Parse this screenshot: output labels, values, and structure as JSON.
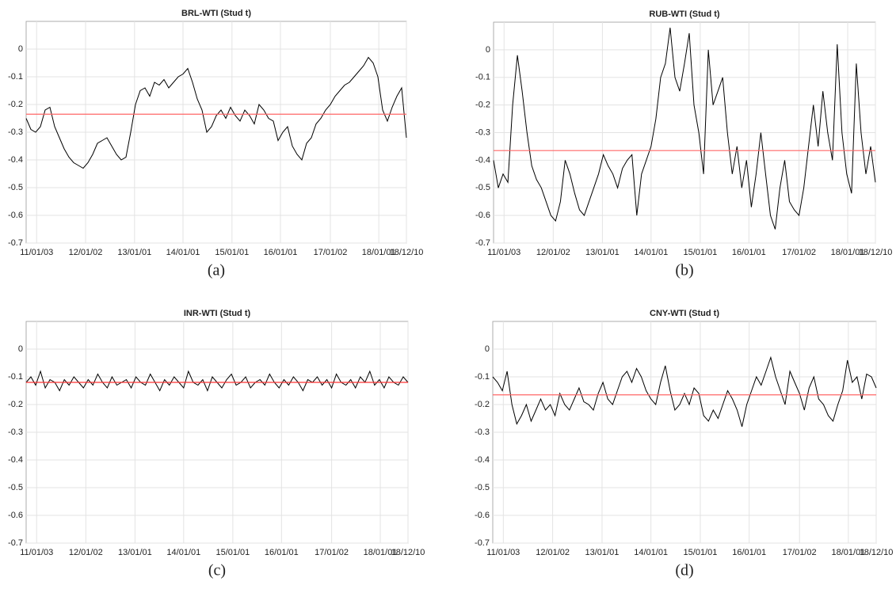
{
  "chart_data": [
    {
      "type": "line",
      "title": "BRL-WTI (Stud t)",
      "caption": "(a)",
      "color": "#000000",
      "x": [
        0,
        1,
        2,
        3,
        4,
        5,
        6,
        7,
        8,
        9,
        10,
        11,
        12,
        13,
        14,
        15,
        16,
        17,
        18,
        19,
        20,
        21,
        22,
        23,
        24,
        25,
        26,
        27,
        28,
        29,
        30,
        31,
        32,
        33,
        34,
        35,
        36,
        37,
        38,
        39,
        40,
        41,
        42,
        43,
        44,
        45,
        46,
        47,
        48,
        49,
        50,
        51,
        52,
        53,
        54,
        55,
        56,
        57,
        58,
        59,
        60,
        61,
        62,
        63,
        64,
        65,
        66,
        67,
        68,
        69,
        70,
        71,
        72,
        73,
        74,
        75,
        76,
        77,
        78,
        79,
        80
      ],
      "values": [
        -0.25,
        -0.29,
        -0.3,
        -0.28,
        -0.22,
        -0.21,
        -0.28,
        -0.32,
        -0.36,
        -0.39,
        -0.41,
        -0.42,
        -0.43,
        -0.41,
        -0.38,
        -0.34,
        -0.33,
        -0.32,
        -0.35,
        -0.38,
        -0.4,
        -0.39,
        -0.3,
        -0.2,
        -0.15,
        -0.14,
        -0.17,
        -0.12,
        -0.13,
        -0.11,
        -0.14,
        -0.12,
        -0.1,
        -0.09,
        -0.07,
        -0.12,
        -0.18,
        -0.22,
        -0.3,
        -0.28,
        -0.24,
        -0.22,
        -0.25,
        -0.21,
        -0.24,
        -0.26,
        -0.22,
        -0.24,
        -0.27,
        -0.2,
        -0.22,
        -0.25,
        -0.26,
        -0.33,
        -0.3,
        -0.28,
        -0.35,
        -0.38,
        -0.4,
        -0.34,
        -0.32,
        -0.27,
        -0.25,
        -0.22,
        -0.2,
        -0.17,
        -0.15,
        -0.13,
        -0.12,
        -0.1,
        -0.08,
        -0.06,
        -0.03,
        -0.05,
        -0.1,
        -0.22,
        -0.26,
        -0.21,
        -0.17,
        -0.14,
        -0.32
      ],
      "mean_line": {
        "value": -0.235,
        "color": "#ff6666"
      },
      "xlim": [
        0,
        80
      ],
      "xticks": [
        {
          "value": 2.2,
          "label": "11/01/03"
        },
        {
          "value": 12.5,
          "label": "12/01/02"
        },
        {
          "value": 22.8,
          "label": "13/01/01"
        },
        {
          "value": 33,
          "label": "14/01/01"
        },
        {
          "value": 43.3,
          "label": "15/01/01"
        },
        {
          "value": 53.5,
          "label": "16/01/01"
        },
        {
          "value": 64,
          "label": "17/01/02"
        },
        {
          "value": 74.2,
          "label": "18/01/01"
        },
        {
          "value": 80,
          "label": "18/12/10"
        }
      ],
      "ylim": [
        -0.7,
        0.1
      ],
      "yticks": [
        -0.7,
        -0.6,
        -0.5,
        -0.4,
        -0.3,
        -0.2,
        -0.1,
        0
      ],
      "grid": true
    },
    {
      "type": "line",
      "title": "RUB-WTI (Stud t)",
      "caption": "(b)",
      "color": "#000000",
      "x": [
        0,
        1,
        2,
        3,
        4,
        5,
        6,
        7,
        8,
        9,
        10,
        11,
        12,
        13,
        14,
        15,
        16,
        17,
        18,
        19,
        20,
        21,
        22,
        23,
        24,
        25,
        26,
        27,
        28,
        29,
        30,
        31,
        32,
        33,
        34,
        35,
        36,
        37,
        38,
        39,
        40,
        41,
        42,
        43,
        44,
        45,
        46,
        47,
        48,
        49,
        50,
        51,
        52,
        53,
        54,
        55,
        56,
        57,
        58,
        59,
        60,
        61,
        62,
        63,
        64,
        65,
        66,
        67,
        68,
        69,
        70,
        71,
        72,
        73,
        74,
        75,
        76,
        77,
        78,
        79,
        80
      ],
      "values": [
        -0.4,
        -0.5,
        -0.45,
        -0.48,
        -0.2,
        -0.02,
        -0.15,
        -0.3,
        -0.42,
        -0.47,
        -0.5,
        -0.55,
        -0.6,
        -0.62,
        -0.55,
        -0.4,
        -0.45,
        -0.52,
        -0.58,
        -0.6,
        -0.55,
        -0.5,
        -0.45,
        -0.38,
        -0.42,
        -0.45,
        -0.5,
        -0.43,
        -0.4,
        -0.38,
        -0.6,
        -0.45,
        -0.4,
        -0.35,
        -0.25,
        -0.1,
        -0.05,
        0.08,
        -0.1,
        -0.15,
        -0.05,
        0.06,
        -0.2,
        -0.3,
        -0.45,
        0.0,
        -0.2,
        -0.15,
        -0.1,
        -0.3,
        -0.45,
        -0.35,
        -0.5,
        -0.4,
        -0.57,
        -0.45,
        -0.3,
        -0.45,
        -0.6,
        -0.65,
        -0.5,
        -0.4,
        -0.55,
        -0.58,
        -0.6,
        -0.5,
        -0.35,
        -0.2,
        -0.35,
        -0.15,
        -0.3,
        -0.4,
        0.02,
        -0.3,
        -0.45,
        -0.52,
        -0.05,
        -0.3,
        -0.45,
        -0.35,
        -0.48
      ],
      "mean_line": {
        "value": -0.365,
        "color": "#ff6666"
      },
      "xlim": [
        0,
        80
      ],
      "xticks": [
        {
          "value": 2.2,
          "label": "11/01/03"
        },
        {
          "value": 12.5,
          "label": "12/01/02"
        },
        {
          "value": 22.8,
          "label": "13/01/01"
        },
        {
          "value": 33,
          "label": "14/01/01"
        },
        {
          "value": 43.3,
          "label": "15/01/01"
        },
        {
          "value": 53.5,
          "label": "16/01/01"
        },
        {
          "value": 64,
          "label": "17/01/02"
        },
        {
          "value": 74.2,
          "label": "18/01/01"
        },
        {
          "value": 80,
          "label": "18/12/10"
        }
      ],
      "ylim": [
        -0.7,
        0.1
      ],
      "yticks": [
        -0.7,
        -0.6,
        -0.5,
        -0.4,
        -0.3,
        -0.2,
        -0.1,
        0
      ],
      "grid": true
    },
    {
      "type": "line",
      "title": "INR-WTI (Stud t)",
      "caption": "(c)",
      "color": "#000000",
      "x": [
        0,
        1,
        2,
        3,
        4,
        5,
        6,
        7,
        8,
        9,
        10,
        11,
        12,
        13,
        14,
        15,
        16,
        17,
        18,
        19,
        20,
        21,
        22,
        23,
        24,
        25,
        26,
        27,
        28,
        29,
        30,
        31,
        32,
        33,
        34,
        35,
        36,
        37,
        38,
        39,
        40,
        41,
        42,
        43,
        44,
        45,
        46,
        47,
        48,
        49,
        50,
        51,
        52,
        53,
        54,
        55,
        56,
        57,
        58,
        59,
        60,
        61,
        62,
        63,
        64,
        65,
        66,
        67,
        68,
        69,
        70,
        71,
        72,
        73,
        74,
        75,
        76,
        77,
        78,
        79,
        80
      ],
      "values": [
        -0.12,
        -0.1,
        -0.13,
        -0.08,
        -0.14,
        -0.11,
        -0.12,
        -0.15,
        -0.11,
        -0.13,
        -0.1,
        -0.12,
        -0.14,
        -0.11,
        -0.13,
        -0.09,
        -0.12,
        -0.14,
        -0.1,
        -0.13,
        -0.12,
        -0.11,
        -0.14,
        -0.1,
        -0.12,
        -0.13,
        -0.09,
        -0.12,
        -0.15,
        -0.11,
        -0.13,
        -0.1,
        -0.12,
        -0.14,
        -0.08,
        -0.12,
        -0.13,
        -0.11,
        -0.15,
        -0.1,
        -0.12,
        -0.14,
        -0.11,
        -0.09,
        -0.13,
        -0.12,
        -0.1,
        -0.14,
        -0.12,
        -0.11,
        -0.13,
        -0.09,
        -0.12,
        -0.14,
        -0.11,
        -0.13,
        -0.1,
        -0.12,
        -0.15,
        -0.11,
        -0.12,
        -0.1,
        -0.13,
        -0.11,
        -0.14,
        -0.09,
        -0.12,
        -0.13,
        -0.11,
        -0.14,
        -0.1,
        -0.12,
        -0.08,
        -0.13,
        -0.11,
        -0.14,
        -0.1,
        -0.12,
        -0.13,
        -0.1,
        -0.12
      ],
      "mean_line": {
        "value": -0.12,
        "color": "#ff3333"
      },
      "xlim": [
        0,
        80
      ],
      "xticks": [
        {
          "value": 2.2,
          "label": "11/01/03"
        },
        {
          "value": 12.5,
          "label": "12/01/02"
        },
        {
          "value": 22.8,
          "label": "13/01/01"
        },
        {
          "value": 33,
          "label": "14/01/01"
        },
        {
          "value": 43.3,
          "label": "15/01/01"
        },
        {
          "value": 53.5,
          "label": "16/01/01"
        },
        {
          "value": 64,
          "label": "17/01/02"
        },
        {
          "value": 74.2,
          "label": "18/01/01"
        },
        {
          "value": 80,
          "label": "18/12/10"
        }
      ],
      "ylim": [
        -0.7,
        0.1
      ],
      "yticks": [
        -0.7,
        -0.6,
        -0.5,
        -0.4,
        -0.3,
        -0.2,
        -0.1,
        0
      ],
      "grid": true
    },
    {
      "type": "line",
      "title": "CNY-WTI (Stud t)",
      "caption": "(d)",
      "color": "#000000",
      "x": [
        0,
        1,
        2,
        3,
        4,
        5,
        6,
        7,
        8,
        9,
        10,
        11,
        12,
        13,
        14,
        15,
        16,
        17,
        18,
        19,
        20,
        21,
        22,
        23,
        24,
        25,
        26,
        27,
        28,
        29,
        30,
        31,
        32,
        33,
        34,
        35,
        36,
        37,
        38,
        39,
        40,
        41,
        42,
        43,
        44,
        45,
        46,
        47,
        48,
        49,
        50,
        51,
        52,
        53,
        54,
        55,
        56,
        57,
        58,
        59,
        60,
        61,
        62,
        63,
        64,
        65,
        66,
        67,
        68,
        69,
        70,
        71,
        72,
        73,
        74,
        75,
        76,
        77,
        78,
        79,
        80
      ],
      "values": [
        -0.1,
        -0.12,
        -0.15,
        -0.08,
        -0.2,
        -0.27,
        -0.24,
        -0.2,
        -0.26,
        -0.22,
        -0.18,
        -0.22,
        -0.2,
        -0.24,
        -0.16,
        -0.2,
        -0.22,
        -0.18,
        -0.14,
        -0.19,
        -0.2,
        -0.22,
        -0.16,
        -0.12,
        -0.18,
        -0.2,
        -0.15,
        -0.1,
        -0.08,
        -0.12,
        -0.07,
        -0.1,
        -0.15,
        -0.18,
        -0.2,
        -0.12,
        -0.06,
        -0.15,
        -0.22,
        -0.2,
        -0.16,
        -0.2,
        -0.14,
        -0.16,
        -0.24,
        -0.26,
        -0.22,
        -0.25,
        -0.2,
        -0.15,
        -0.18,
        -0.22,
        -0.28,
        -0.2,
        -0.15,
        -0.1,
        -0.13,
        -0.08,
        -0.03,
        -0.1,
        -0.15,
        -0.2,
        -0.08,
        -0.12,
        -0.16,
        -0.22,
        -0.14,
        -0.1,
        -0.18,
        -0.2,
        -0.24,
        -0.26,
        -0.2,
        -0.15,
        -0.04,
        -0.12,
        -0.1,
        -0.18,
        -0.09,
        -0.1,
        -0.14
      ],
      "mean_line": {
        "value": -0.165,
        "color": "#ff6666"
      },
      "xlim": [
        0,
        80
      ],
      "xticks": [
        {
          "value": 2.2,
          "label": "11/01/03"
        },
        {
          "value": 12.5,
          "label": "12/01/02"
        },
        {
          "value": 22.8,
          "label": "13/01/01"
        },
        {
          "value": 33,
          "label": "14/01/01"
        },
        {
          "value": 43.3,
          "label": "15/01/01"
        },
        {
          "value": 53.5,
          "label": "16/01/01"
        },
        {
          "value": 64,
          "label": "17/01/02"
        },
        {
          "value": 74.2,
          "label": "18/01/01"
        },
        {
          "value": 80,
          "label": "18/12/10"
        }
      ],
      "ylim": [
        -0.7,
        0.1
      ],
      "yticks": [
        -0.7,
        -0.6,
        -0.5,
        -0.4,
        -0.3,
        -0.2,
        -0.1,
        0
      ],
      "grid": true
    }
  ]
}
